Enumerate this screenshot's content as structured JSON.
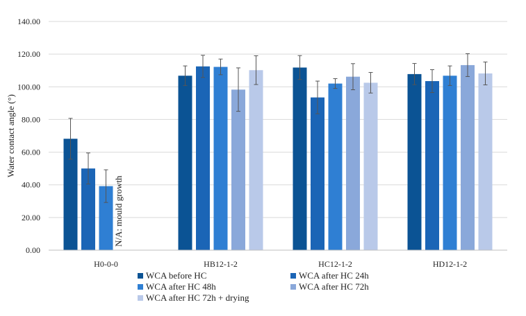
{
  "chart_data": {
    "type": "bar",
    "title": "",
    "xlabel": "",
    "ylabel": "Water contact angle (°)",
    "ylim": [
      0,
      140
    ],
    "yticks": [
      0,
      20,
      40,
      60,
      80,
      100,
      120,
      140
    ],
    "ytick_labels": [
      "0.00",
      "20.00",
      "40.00",
      "60.00",
      "80.00",
      "100.00",
      "120.00",
      "140.00"
    ],
    "grid": true,
    "legend_position": "bottom",
    "categories": [
      "H0-0-0",
      "HB12-1-2",
      "HC12-1-2",
      "HD12-1-2"
    ],
    "series": [
      {
        "name": "WCA before HC",
        "color": "#0b5394",
        "values": [
          68.2,
          106.8,
          111.8,
          107.8
        ],
        "errors": [
          12.5,
          6.0,
          7.3,
          6.5
        ]
      },
      {
        "name": "WCA after HC 24h",
        "color": "#1b65b6",
        "values": [
          50.0,
          112.5,
          93.5,
          103.5
        ],
        "errors": [
          9.5,
          6.8,
          10.0,
          7.0
        ]
      },
      {
        "name": "WCA after HC 48h",
        "color": "#2f7fd3",
        "values": [
          39.2,
          112.2,
          102.0,
          106.8
        ],
        "errors": [
          10.0,
          4.8,
          3.0,
          6.0
        ]
      },
      {
        "name": "WCA after HC 72h",
        "color": "#8aa8da",
        "values": [
          null,
          98.3,
          106.2,
          113.3
        ],
        "errors": [
          null,
          13.3,
          8.0,
          7.0
        ]
      },
      {
        "name": "WCA after HC 72h + drying",
        "color": "#b9c9e9",
        "values": [
          null,
          110.2,
          102.5,
          108.2
        ],
        "errors": [
          null,
          8.8,
          6.3,
          7.0
        ]
      }
    ],
    "annotations": [
      {
        "text": "N/A: mould growth",
        "category": "H0-0-0",
        "orientation": "vertical"
      }
    ]
  }
}
